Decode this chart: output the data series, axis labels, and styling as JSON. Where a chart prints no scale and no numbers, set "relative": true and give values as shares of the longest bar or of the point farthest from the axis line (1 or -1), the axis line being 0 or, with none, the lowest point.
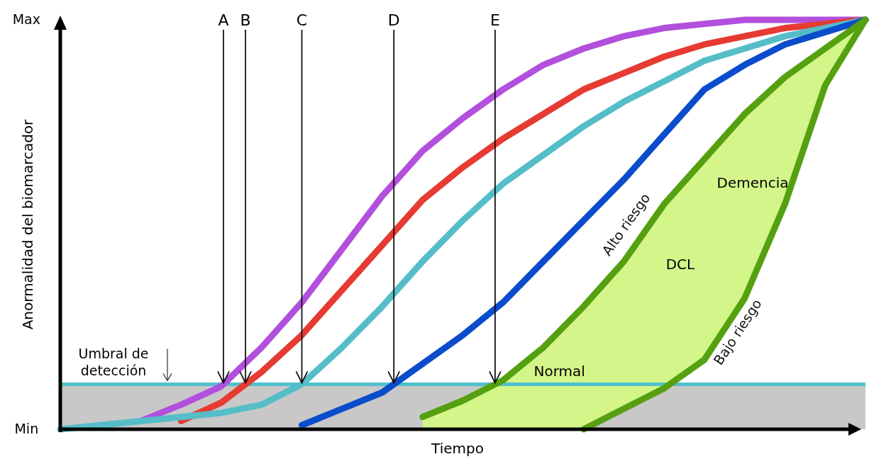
{
  "chart_data": {
    "type": "line",
    "xlabel": "Tiempo",
    "ylabel": "Anormalidad del biomarcador",
    "categories": [
      null,
      null,
      null,
      null,
      null,
      null,
      null,
      null,
      null,
      null,
      null,
      null,
      null,
      null,
      null,
      null,
      null,
      null,
      null,
      null,
      null
    ],
    "relative": true,
    "legend": false,
    "marker": "none",
    "line_style": "solid",
    "series": [
      {
        "color": "#b24fdc",
        "values": [
          null,
          null,
          0.02,
          0.06,
          0.105,
          0.2,
          0.31,
          0.44,
          0.57,
          0.68,
          0.76,
          0.83,
          0.89,
          0.93,
          0.96,
          0.98,
          0.99,
          1,
          1,
          1,
          1
        ]
      },
      {
        "color": "#e53b32",
        "values": [
          null,
          null,
          null,
          0.02,
          0.065,
          0.14,
          0.23,
          0.34,
          0.45,
          0.56,
          0.64,
          0.71,
          0.77,
          0.83,
          0.87,
          0.91,
          0.94,
          0.96,
          0.98,
          0.99,
          1
        ]
      },
      {
        "color": "#55bdc8",
        "values": [
          0,
          0.01,
          0.02,
          0.03,
          0.04,
          0.06,
          0.11,
          0.2,
          0.3,
          0.41,
          0.51,
          0.6,
          0.67,
          0.74,
          0.8,
          0.85,
          0.9,
          0.93,
          0.96,
          0.98,
          1
        ]
      },
      {
        "color": "#0a4ccc",
        "values": [
          null,
          null,
          null,
          null,
          null,
          null,
          0.01,
          0.05,
          0.09,
          0.16,
          0.23,
          0.31,
          0.41,
          0.51,
          0.61,
          0.72,
          0.83,
          0.89,
          0.94,
          0.97,
          1
        ]
      },
      {
        "name": "Alto riesgo",
        "color": "#55a010",
        "values": [
          null,
          null,
          null,
          null,
          null,
          null,
          null,
          null,
          null,
          0.03,
          0.07,
          0.12,
          0.2,
          0.3,
          0.41,
          0.55,
          0.66,
          0.77,
          0.86,
          0.93,
          1
        ],
        "lower": [
          null,
          null,
          null,
          null,
          null,
          null,
          null,
          null,
          null,
          0,
          0,
          0,
          0,
          0,
          0.05,
          0.1,
          0.17,
          0.32,
          0.55,
          0.84,
          1
        ],
        "upper": [
          null,
          null,
          null,
          null,
          null,
          null,
          null,
          null,
          null,
          0.03,
          0.07,
          0.12,
          0.2,
          0.3,
          0.41,
          0.55,
          0.66,
          0.77,
          0.86,
          0.93,
          1
        ]
      },
      {
        "name": "Bajo riesgo",
        "color": "#55a010",
        "values": [
          null,
          null,
          null,
          null,
          null,
          null,
          null,
          null,
          null,
          null,
          null,
          null,
          null,
          0,
          0.05,
          0.1,
          0.17,
          0.32,
          0.55,
          0.84,
          1
        ]
      }
    ],
    "bands": [
      {
        "axis": "y",
        "from": 0,
        "to": 0.11,
        "color": "#c8c8c8"
      }
    ],
    "ref_lines": [
      {
        "axis": "y",
        "value": 0.11,
        "label": "Umbral de detección",
        "color": "#4fc0cc"
      }
    ],
    "annotations": [
      "A",
      "B",
      "C",
      "D",
      "E",
      "Normal",
      "DCL",
      "Demencia",
      "Max",
      "Min"
    ]
  }
}
